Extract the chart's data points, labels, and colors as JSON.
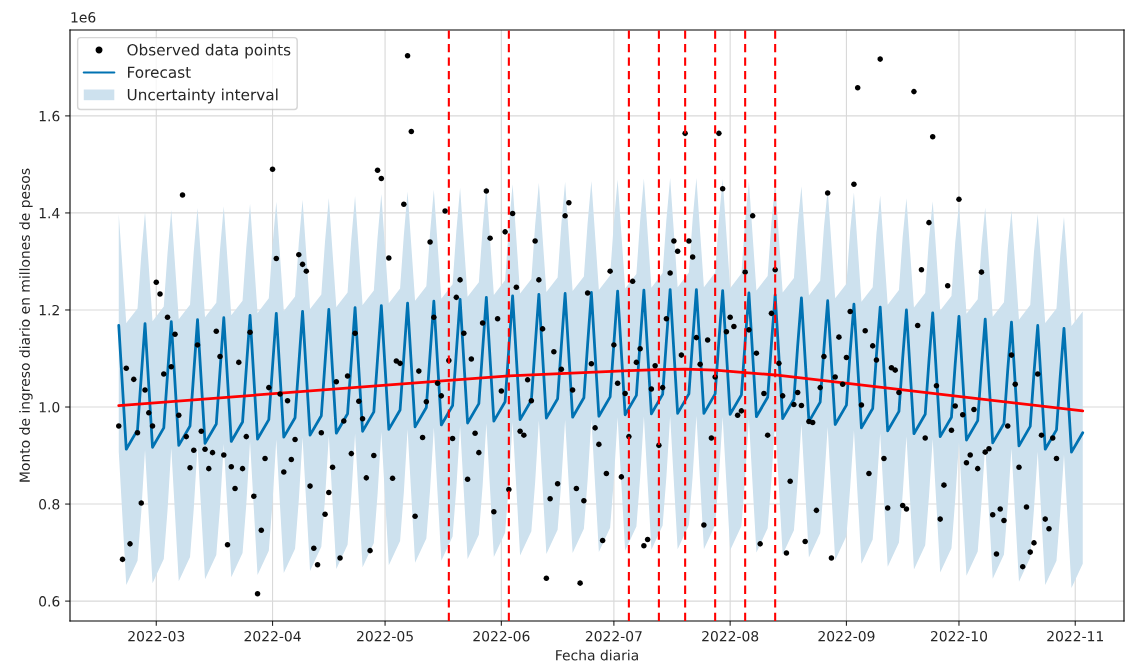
{
  "chart_data": {
    "type": "line",
    "xlabel": "Fecha diaria",
    "ylabel": "Monto de ingreso diario en millones de pesos",
    "annotations": [
      "1e6"
    ],
    "xlim": [
      "2022-02-06",
      "2022-11-14"
    ],
    "xticks": [
      {
        "value": "2022-03-01",
        "label": "2022-03"
      },
      {
        "value": "2022-04-01",
        "label": "2022-04"
      },
      {
        "value": "2022-05-01",
        "label": "2022-05"
      },
      {
        "value": "2022-06-01",
        "label": "2022-06"
      },
      {
        "value": "2022-07-01",
        "label": "2022-07"
      },
      {
        "value": "2022-08-01",
        "label": "2022-08"
      },
      {
        "value": "2022-09-01",
        "label": "2022-09"
      },
      {
        "value": "2022-10-01",
        "label": "2022-10"
      },
      {
        "value": "2022-11-01",
        "label": "2022-11"
      }
    ],
    "ylim": [
      0.559,
      1.777
    ],
    "yticks": [
      0.6,
      0.8,
      {
        "value": 1.0,
        "label": "1.0"
      },
      1.2,
      1.4,
      1.6
    ],
    "grid": true,
    "legend": "top left",
    "series": [
      {
        "type": "area",
        "name": "Uncertainty interval",
        "color": "#cde1ee"
      },
      {
        "name": "Forecast",
        "color": "#0072b2",
        "x": [
          "2022-02-19",
          "2022-02-21",
          "2022-02-24",
          "2022-02-25",
          "2022-02-26",
          "2022-02-28",
          "2022-03-03",
          "2022-03-04",
          "2022-03-05",
          "2022-03-07",
          "2022-03-10",
          "2022-03-11",
          "2022-03-12",
          "2022-03-14",
          "2022-03-17",
          "2022-03-18",
          "2022-03-19",
          "2022-03-21",
          "2022-03-24",
          "2022-03-25",
          "2022-03-26",
          "2022-03-28",
          "2022-03-31",
          "2022-04-01",
          "2022-04-02",
          "2022-04-04",
          "2022-04-07",
          "2022-04-08",
          "2022-04-09",
          "2022-04-11",
          "2022-04-14",
          "2022-04-15",
          "2022-04-16",
          "2022-04-18",
          "2022-04-21",
          "2022-04-22",
          "2022-04-23",
          "2022-04-25",
          "2022-04-28",
          "2022-04-29",
          "2022-04-30",
          "2022-05-02",
          "2022-05-05",
          "2022-05-06",
          "2022-05-07",
          "2022-05-09",
          "2022-05-12",
          "2022-05-13",
          "2022-05-14",
          "2022-05-16",
          "2022-05-19",
          "2022-05-20",
          "2022-05-21",
          "2022-05-23",
          "2022-05-26",
          "2022-05-27",
          "2022-05-28",
          "2022-05-30",
          "2022-06-02",
          "2022-06-03",
          "2022-06-04",
          "2022-06-06",
          "2022-06-09",
          "2022-06-10",
          "2022-06-11",
          "2022-06-13",
          "2022-06-16",
          "2022-06-17",
          "2022-06-18",
          "2022-06-20",
          "2022-06-23",
          "2022-06-24",
          "2022-06-25",
          "2022-06-27",
          "2022-06-30",
          "2022-07-01",
          "2022-07-02",
          "2022-07-04",
          "2022-07-07",
          "2022-07-08",
          "2022-07-09",
          "2022-07-11",
          "2022-07-14",
          "2022-07-15",
          "2022-07-16",
          "2022-07-18",
          "2022-07-21",
          "2022-07-22",
          "2022-07-23",
          "2022-07-25",
          "2022-07-28",
          "2022-07-29",
          "2022-07-30",
          "2022-08-01",
          "2022-08-04",
          "2022-08-05",
          "2022-08-06",
          "2022-08-08",
          "2022-08-11",
          "2022-08-12",
          "2022-08-13",
          "2022-08-15",
          "2022-08-18",
          "2022-08-19",
          "2022-08-20",
          "2022-08-22",
          "2022-08-25",
          "2022-08-26",
          "2022-08-27",
          "2022-08-29",
          "2022-09-01",
          "2022-09-02",
          "2022-09-03",
          "2022-09-05",
          "2022-09-08",
          "2022-09-09",
          "2022-09-10",
          "2022-09-12",
          "2022-09-15",
          "2022-09-16",
          "2022-09-17",
          "2022-09-19",
          "2022-09-22",
          "2022-09-23",
          "2022-09-24",
          "2022-09-26",
          "2022-09-29",
          "2022-09-30",
          "2022-10-01",
          "2022-10-03",
          "2022-10-06",
          "2022-10-07",
          "2022-10-08",
          "2022-10-10",
          "2022-10-13",
          "2022-10-14",
          "2022-10-15",
          "2022-10-17",
          "2022-10-20",
          "2022-10-21",
          "2022-10-22",
          "2022-10-24",
          "2022-10-27",
          "2022-10-28",
          "2022-10-29",
          "2022-10-31",
          "2022-11-03"
        ],
        "upper": [
          1.398,
          1.173,
          1.203,
          1.313,
          1.402,
          1.177,
          1.207,
          1.317,
          1.406,
          1.181,
          1.211,
          1.321,
          1.41,
          1.185,
          1.215,
          1.325,
          1.414,
          1.189,
          1.219,
          1.329,
          1.419,
          1.194,
          1.224,
          1.334,
          1.423,
          1.198,
          1.228,
          1.338,
          1.427,
          1.202,
          1.232,
          1.342,
          1.431,
          1.206,
          1.236,
          1.346,
          1.435,
          1.21,
          1.24,
          1.35,
          1.439,
          1.214,
          1.244,
          1.354,
          1.444,
          1.219,
          1.249,
          1.359,
          1.448,
          1.223,
          1.253,
          1.363,
          1.452,
          1.227,
          1.257,
          1.367,
          1.456,
          1.231,
          1.261,
          1.371,
          1.459,
          1.234,
          1.264,
          1.374,
          1.462,
          1.237,
          1.267,
          1.377,
          1.464,
          1.239,
          1.269,
          1.379,
          1.466,
          1.241,
          1.271,
          1.381,
          1.469,
          1.244,
          1.274,
          1.384,
          1.471,
          1.246,
          1.276,
          1.386,
          1.472,
          1.247,
          1.277,
          1.387,
          1.472,
          1.247,
          1.277,
          1.387,
          1.47,
          1.245,
          1.275,
          1.385,
          1.465,
          1.24,
          1.27,
          1.38,
          1.461,
          1.236,
          1.266,
          1.376,
          1.455,
          1.23,
          1.26,
          1.37,
          1.449,
          1.224,
          1.254,
          1.364,
          1.442,
          1.217,
          1.247,
          1.357,
          1.436,
          1.211,
          1.241,
          1.351,
          1.43,
          1.205,
          1.235,
          1.345,
          1.424,
          1.199,
          1.229,
          1.339,
          1.417,
          1.192,
          1.222,
          1.332,
          1.411,
          1.186,
          1.216,
          1.326,
          1.405,
          1.18,
          1.21,
          1.32,
          1.398,
          1.173,
          1.203,
          1.313,
          1.392,
          1.167,
          1.197
        ],
        "lower": [
          0.908,
          0.633,
          0.683,
          0.783,
          0.912,
          0.637,
          0.687,
          0.787,
          0.916,
          0.641,
          0.691,
          0.791,
          0.92,
          0.645,
          0.695,
          0.795,
          0.924,
          0.649,
          0.699,
          0.799,
          0.929,
          0.654,
          0.704,
          0.804,
          0.933,
          0.658,
          0.708,
          0.808,
          0.937,
          0.662,
          0.712,
          0.812,
          0.941,
          0.666,
          0.716,
          0.816,
          0.945,
          0.67,
          0.72,
          0.82,
          0.949,
          0.674,
          0.724,
          0.824,
          0.954,
          0.679,
          0.729,
          0.829,
          0.958,
          0.683,
          0.733,
          0.833,
          0.962,
          0.687,
          0.737,
          0.837,
          0.966,
          0.691,
          0.741,
          0.841,
          0.969,
          0.694,
          0.744,
          0.844,
          0.972,
          0.697,
          0.747,
          0.847,
          0.974,
          0.699,
          0.749,
          0.849,
          0.976,
          0.701,
          0.751,
          0.851,
          0.979,
          0.704,
          0.754,
          0.854,
          0.981,
          0.706,
          0.756,
          0.856,
          0.982,
          0.707,
          0.757,
          0.857,
          0.982,
          0.707,
          0.757,
          0.857,
          0.98,
          0.705,
          0.755,
          0.855,
          0.975,
          0.7,
          0.75,
          0.85,
          0.971,
          0.696,
          0.746,
          0.846,
          0.965,
          0.69,
          0.74,
          0.84,
          0.959,
          0.684,
          0.734,
          0.834,
          0.952,
          0.677,
          0.727,
          0.827,
          0.946,
          0.671,
          0.721,
          0.821,
          0.94,
          0.665,
          0.715,
          0.815,
          0.934,
          0.659,
          0.709,
          0.809,
          0.927,
          0.652,
          0.702,
          0.802,
          0.921,
          0.646,
          0.696,
          0.796,
          0.915,
          0.64,
          0.69,
          0.79,
          0.908,
          0.633,
          0.683,
          0.783,
          0.902,
          0.627,
          0.677
        ],
        "values": [
          1.168,
          0.913,
          0.953,
          1.063,
          1.172,
          0.917,
          0.957,
          1.067,
          1.176,
          0.921,
          0.961,
          1.071,
          1.18,
          0.925,
          0.965,
          1.075,
          1.184,
          0.929,
          0.969,
          1.079,
          1.189,
          0.934,
          0.974,
          1.084,
          1.193,
          0.938,
          0.978,
          1.088,
          1.197,
          0.942,
          0.982,
          1.092,
          1.201,
          0.946,
          0.986,
          1.096,
          1.205,
          0.95,
          0.99,
          1.1,
          1.209,
          0.954,
          0.994,
          1.104,
          1.214,
          0.959,
          0.999,
          1.109,
          1.218,
          0.963,
          1.003,
          1.113,
          1.222,
          0.967,
          1.007,
          1.117,
          1.226,
          0.971,
          1.011,
          1.121,
          1.229,
          0.974,
          1.014,
          1.124,
          1.232,
          0.977,
          1.017,
          1.127,
          1.234,
          0.979,
          1.019,
          1.129,
          1.236,
          0.981,
          1.021,
          1.131,
          1.239,
          0.984,
          1.024,
          1.134,
          1.241,
          0.986,
          1.026,
          1.136,
          1.242,
          0.987,
          1.027,
          1.137,
          1.242,
          0.987,
          1.027,
          1.137,
          1.24,
          0.985,
          1.025,
          1.135,
          1.235,
          0.98,
          1.02,
          1.13,
          1.231,
          0.976,
          1.016,
          1.126,
          1.225,
          0.97,
          1.01,
          1.12,
          1.219,
          0.964,
          1.004,
          1.114,
          1.212,
          0.957,
          0.997,
          1.107,
          1.206,
          0.951,
          0.991,
          1.101,
          1.2,
          0.945,
          0.985,
          1.095,
          1.194,
          0.939,
          0.979,
          1.089,
          1.187,
          0.932,
          0.972,
          1.082,
          1.181,
          0.926,
          0.966,
          1.076,
          1.175,
          0.92,
          0.96,
          1.07,
          1.168,
          0.913,
          0.953,
          1.063,
          1.162,
          0.907,
          0.947
        ]
      },
      {
        "color": "#ff0000",
        "x": [
          "2022-02-19",
          "2022-05-18",
          "2022-06-03",
          "2022-07-05",
          "2022-07-13",
          "2022-07-20",
          "2022-07-28",
          "2022-08-05",
          "2022-08-13",
          "2022-11-03"
        ],
        "values": [
          1.003,
          1.055,
          1.064,
          1.075,
          1.077,
          1.078,
          1.076,
          1.071,
          1.066,
          0.992
        ]
      },
      {
        "type": "scatter",
        "name": "Observed data points",
        "color": "#000000",
        "marker": "circle",
        "x": [
          "2022-02-19",
          "2022-02-20",
          "2022-02-21",
          "2022-02-22",
          "2022-02-23",
          "2022-02-24",
          "2022-02-25",
          "2022-02-26",
          "2022-02-27",
          "2022-02-28",
          "2022-03-01",
          "2022-03-02",
          "2022-03-03",
          "2022-03-04",
          "2022-03-05",
          "2022-03-06",
          "2022-03-07",
          "2022-03-08",
          "2022-03-09",
          "2022-03-10",
          "2022-03-11",
          "2022-03-12",
          "2022-03-13",
          "2022-03-14",
          "2022-03-15",
          "2022-03-16",
          "2022-03-17",
          "2022-03-18",
          "2022-03-19",
          "2022-03-20",
          "2022-03-21",
          "2022-03-22",
          "2022-03-23",
          "2022-03-24",
          "2022-03-25",
          "2022-03-26",
          "2022-03-27",
          "2022-03-28",
          "2022-03-29",
          "2022-03-30",
          "2022-03-31",
          "2022-04-01",
          "2022-04-02",
          "2022-04-03",
          "2022-04-04",
          "2022-04-05",
          "2022-04-06",
          "2022-04-07",
          "2022-04-08",
          "2022-04-09",
          "2022-04-10",
          "2022-04-11",
          "2022-04-12",
          "2022-04-13",
          "2022-04-14",
          "2022-04-15",
          "2022-04-16",
          "2022-04-17",
          "2022-04-18",
          "2022-04-19",
          "2022-04-20",
          "2022-04-21",
          "2022-04-22",
          "2022-04-23",
          "2022-04-24",
          "2022-04-25",
          "2022-04-26",
          "2022-04-27",
          "2022-04-28",
          "2022-04-29",
          "2022-04-30",
          "2022-05-02",
          "2022-05-03",
          "2022-05-04",
          "2022-05-05",
          "2022-05-06",
          "2022-05-07",
          "2022-05-08",
          "2022-05-09",
          "2022-05-10",
          "2022-05-11",
          "2022-05-12",
          "2022-05-13",
          "2022-05-14",
          "2022-05-15",
          "2022-05-16",
          "2022-05-17",
          "2022-05-18",
          "2022-05-19",
          "2022-05-20",
          "2022-05-21",
          "2022-05-22",
          "2022-05-23",
          "2022-05-24",
          "2022-05-25",
          "2022-05-26",
          "2022-05-27",
          "2022-05-28",
          "2022-05-29",
          "2022-05-30",
          "2022-05-31",
          "2022-06-01",
          "2022-06-02",
          "2022-06-03",
          "2022-06-04",
          "2022-06-05",
          "2022-06-06",
          "2022-06-07",
          "2022-06-08",
          "2022-06-09",
          "2022-06-10",
          "2022-06-11",
          "2022-06-12",
          "2022-06-13",
          "2022-06-14",
          "2022-06-15",
          "2022-06-16",
          "2022-06-17",
          "2022-06-18",
          "2022-06-19",
          "2022-06-20",
          "2022-06-21",
          "2022-06-22",
          "2022-06-23",
          "2022-06-24",
          "2022-06-25",
          "2022-06-26",
          "2022-06-27",
          "2022-06-28",
          "2022-06-29",
          "2022-06-30",
          "2022-07-01",
          "2022-07-02",
          "2022-07-03",
          "2022-07-04",
          "2022-07-05",
          "2022-07-06",
          "2022-07-07",
          "2022-07-08",
          "2022-07-09",
          "2022-07-10",
          "2022-07-11",
          "2022-07-12",
          "2022-07-13",
          "2022-07-14",
          "2022-07-15",
          "2022-07-16",
          "2022-07-17",
          "2022-07-18",
          "2022-07-19",
          "2022-07-20",
          "2022-07-21",
          "2022-07-22",
          "2022-07-23",
          "2022-07-24",
          "2022-07-25",
          "2022-07-26",
          "2022-07-27",
          "2022-07-28",
          "2022-07-29",
          "2022-07-30",
          "2022-07-31",
          "2022-08-01",
          "2022-08-02",
          "2022-08-03",
          "2022-08-04",
          "2022-08-05",
          "2022-08-06",
          "2022-08-07",
          "2022-08-08",
          "2022-08-09",
          "2022-08-10",
          "2022-08-11",
          "2022-08-12",
          "2022-08-13",
          "2022-08-14",
          "2022-08-15",
          "2022-08-16",
          "2022-08-17",
          "2022-08-18",
          "2022-08-19",
          "2022-08-20",
          "2022-08-21",
          "2022-08-22",
          "2022-08-23",
          "2022-08-24",
          "2022-08-25",
          "2022-08-26",
          "2022-08-27",
          "2022-08-28",
          "2022-08-29",
          "2022-08-30",
          "2022-08-31",
          "2022-09-01",
          "2022-09-02",
          "2022-09-03",
          "2022-09-04",
          "2022-09-05",
          "2022-09-06",
          "2022-09-07",
          "2022-09-08",
          "2022-09-09",
          "2022-09-10",
          "2022-09-11",
          "2022-09-12",
          "2022-09-13",
          "2022-09-14",
          "2022-09-15",
          "2022-09-16",
          "2022-09-17",
          "2022-09-19",
          "2022-09-20",
          "2022-09-21",
          "2022-09-22",
          "2022-09-23",
          "2022-09-24",
          "2022-09-25",
          "2022-09-26",
          "2022-09-27",
          "2022-09-28",
          "2022-09-29",
          "2022-09-30",
          "2022-10-01",
          "2022-10-02",
          "2022-10-03",
          "2022-10-04",
          "2022-10-05",
          "2022-10-06",
          "2022-10-07",
          "2022-10-08",
          "2022-10-09",
          "2022-10-10",
          "2022-10-11",
          "2022-10-12",
          "2022-10-13",
          "2022-10-14",
          "2022-10-15",
          "2022-10-16",
          "2022-10-17",
          "2022-10-18",
          "2022-10-19",
          "2022-10-20",
          "2022-10-21",
          "2022-10-22",
          "2022-10-23",
          "2022-10-24",
          "2022-10-25",
          "2022-10-26",
          "2022-10-27"
        ],
        "values": [
          0.961,
          0.686,
          1.08,
          0.718,
          1.057,
          0.947,
          0.802,
          1.035,
          0.988,
          0.961,
          1.257,
          1.233,
          1.068,
          1.185,
          1.083,
          1.15,
          0.983,
          1.437,
          0.939,
          0.875,
          0.911,
          1.128,
          0.95,
          0.913,
          0.873,
          0.906,
          1.156,
          1.104,
          0.901,
          0.716,
          0.877,
          0.832,
          1.092,
          0.873,
          0.939,
          1.154,
          0.816,
          0.615,
          0.746,
          0.894,
          1.04,
          1.49,
          1.306,
          1.027,
          0.866,
          1.013,
          0.892,
          0.933,
          1.314,
          1.294,
          1.28,
          0.837,
          0.709,
          0.675,
          0.947,
          0.779,
          0.824,
          0.876,
          1.052,
          0.689,
          0.971,
          1.064,
          0.904,
          1.152,
          1.012,
          0.976,
          0.854,
          0.704,
          0.9,
          1.488,
          1.471,
          1.307,
          0.853,
          1.095,
          1.09,
          1.418,
          1.724,
          1.568,
          0.775,
          1.074,
          0.937,
          1.011,
          1.34,
          1.185,
          1.049,
          1.023,
          1.404,
          1.096,
          0.935,
          1.226,
          1.262,
          1.152,
          0.851,
          1.099,
          0.946,
          0.906,
          1.173,
          1.445,
          1.348,
          0.784,
          1.182,
          1.033,
          1.361,
          0.83,
          1.399,
          1.247,
          0.95,
          0.942,
          1.056,
          1.013,
          1.342,
          1.262,
          1.161,
          0.647,
          0.811,
          1.114,
          0.842,
          1.078,
          1.394,
          1.421,
          1.035,
          0.832,
          0.637,
          0.807,
          1.235,
          1.089,
          0.957,
          0.923,
          0.725,
          0.863,
          1.28,
          1.128,
          1.049,
          0.856,
          1.028,
          0.939,
          1.259,
          1.092,
          1.12,
          0.714,
          0.727,
          1.037,
          1.085,
          0.921,
          1.04,
          1.182,
          1.276,
          1.342,
          1.321,
          1.107,
          1.564,
          1.342,
          1.309,
          1.143,
          1.088,
          0.757,
          1.138,
          0.936,
          1.062,
          1.564,
          1.45,
          1.155,
          1.185,
          1.166,
          0.983,
          0.992,
          1.278,
          1.159,
          1.394,
          1.111,
          0.718,
          1.028,
          0.942,
          1.193,
          1.283,
          1.09,
          1.023,
          0.699,
          0.847,
          1.005,
          1.03,
          1.003,
          0.723,
          0.97,
          0.968,
          0.787,
          1.04,
          1.104,
          1.441,
          0.689,
          1.062,
          1.144,
          1.047,
          1.102,
          1.197,
          1.459,
          1.658,
          1.004,
          1.157,
          0.863,
          1.126,
          1.097,
          1.717,
          0.894,
          0.792,
          1.081,
          1.076,
          1.03,
          0.797,
          0.79,
          1.65,
          1.168,
          1.283,
          0.936,
          1.38,
          1.557,
          1.044,
          0.769,
          0.839,
          1.25,
          0.952,
          1.002,
          1.428,
          0.984,
          0.885,
          0.901,
          0.995,
          0.873,
          1.278,
          0.907,
          0.914,
          0.778,
          0.697,
          0.79,
          0.766,
          0.961,
          1.107,
          1.047,
          0.876,
          0.671,
          0.794,
          0.701,
          0.72,
          1.068,
          0.942,
          0.769,
          0.749,
          0.936,
          0.894
        ]
      }
    ],
    "ref_lines": [
      {
        "axis": "x",
        "value": "2022-05-18",
        "color": "#ff0000",
        "line_style": "dashed"
      },
      {
        "axis": "x",
        "value": "2022-06-03",
        "color": "#ff0000",
        "line_style": "dashed"
      },
      {
        "axis": "x",
        "value": "2022-07-05",
        "color": "#ff0000",
        "line_style": "dashed"
      },
      {
        "axis": "x",
        "value": "2022-07-13",
        "color": "#ff0000",
        "line_style": "dashed"
      },
      {
        "axis": "x",
        "value": "2022-07-20",
        "color": "#ff0000",
        "line_style": "dashed"
      },
      {
        "axis": "x",
        "value": "2022-07-28",
        "color": "#ff0000",
        "line_style": "dashed"
      },
      {
        "axis": "x",
        "value": "2022-08-05",
        "color": "#ff0000",
        "line_style": "dashed"
      },
      {
        "axis": "x",
        "value": "2022-08-13",
        "color": "#ff0000",
        "line_style": "dashed"
      }
    ]
  }
}
